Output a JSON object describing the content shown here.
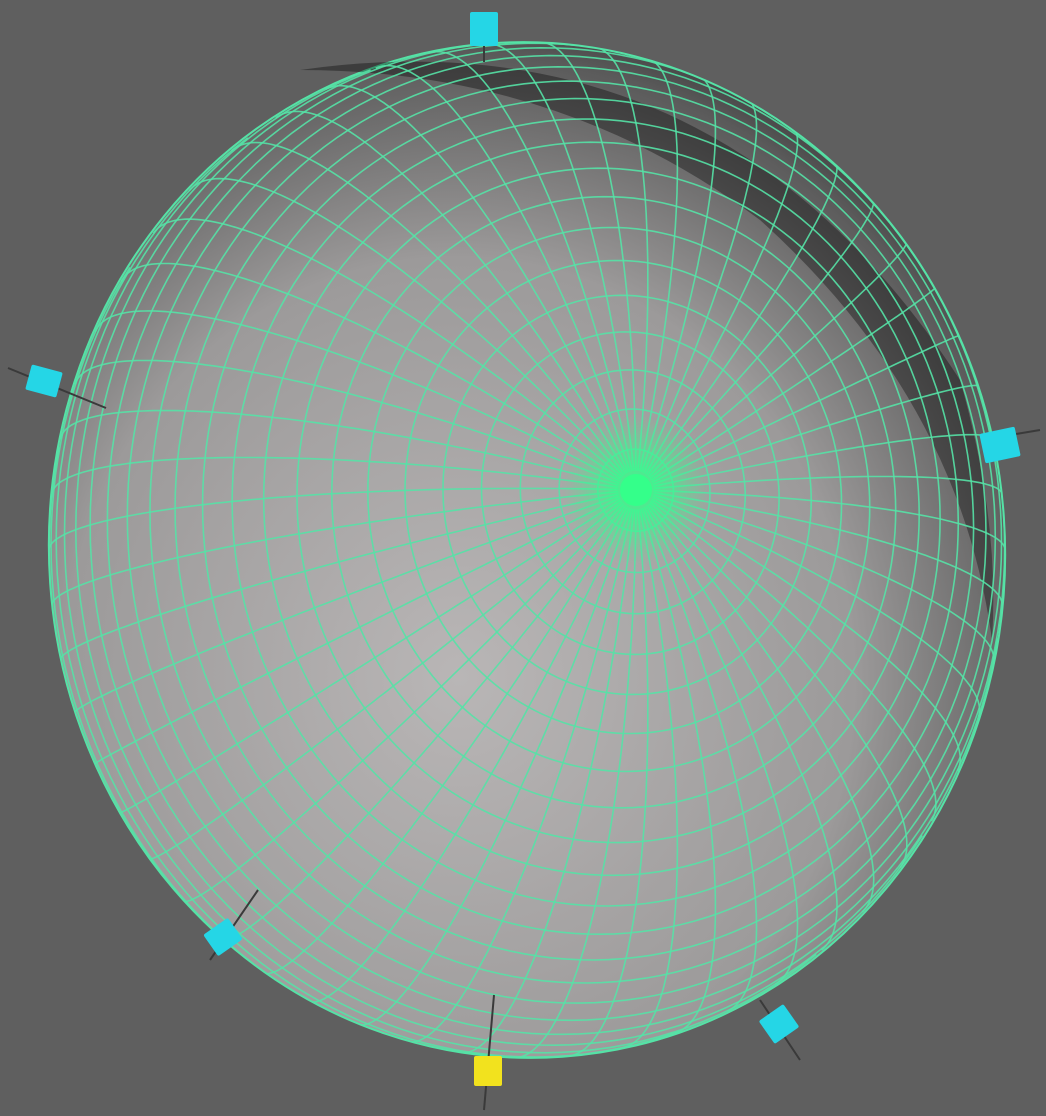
{
  "viewport": {
    "background": "#5f5f5f",
    "mesh_color": "#55e2a6",
    "center_glow_color": "#34ff8a",
    "handle_color": "#25d6e6",
    "selected_handle_color": "#f2e21e",
    "shading_light": "#b9b6b6",
    "shading_dark": "#000000"
  },
  "object": {
    "shape": "sphere-wireframe",
    "rings": 28,
    "meridians": 56
  },
  "handles": [
    {
      "name": "control-handle-top",
      "selected": false
    },
    {
      "name": "control-handle-right",
      "selected": false
    },
    {
      "name": "control-handle-bottom-right",
      "selected": false
    },
    {
      "name": "control-handle-bottom",
      "selected": true
    },
    {
      "name": "control-handle-bottom-left",
      "selected": false
    },
    {
      "name": "control-handle-left",
      "selected": false
    }
  ]
}
